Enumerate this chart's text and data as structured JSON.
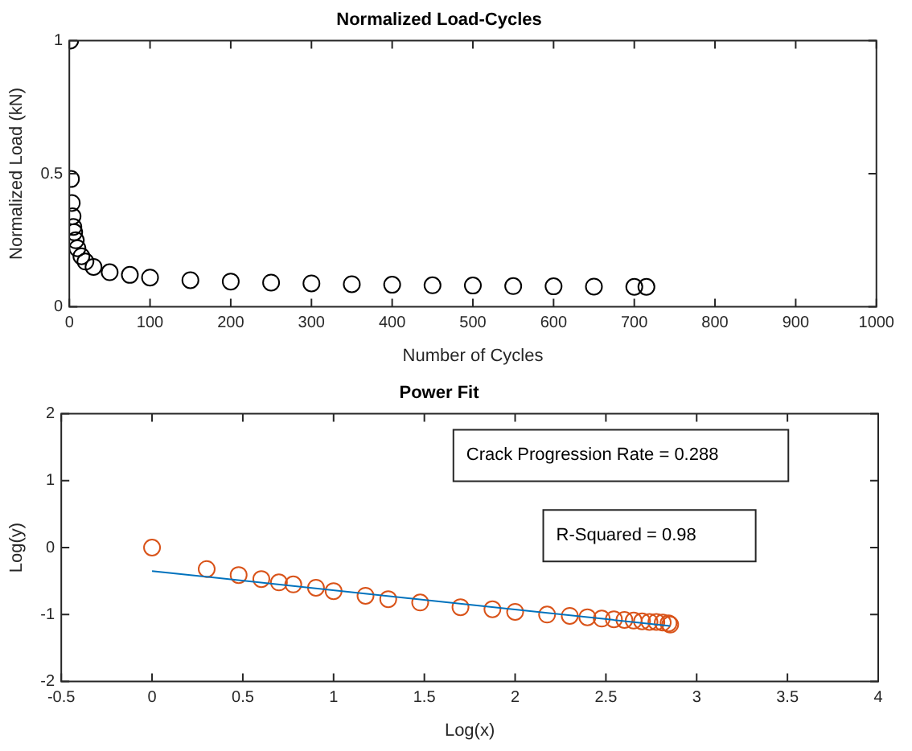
{
  "chart_data": [
    {
      "type": "scatter",
      "title": "Normalized Load-Cycles",
      "xlabel": "Number of Cycles",
      "ylabel": "Normalized Load (kN)",
      "marker": "circle",
      "grid": false,
      "legend": false,
      "xlim": [
        0,
        1000
      ],
      "xticks": [
        0,
        100,
        200,
        300,
        400,
        500,
        600,
        700,
        800,
        900,
        1000
      ],
      "ylim": [
        0,
        1
      ],
      "yticks": [
        0,
        0.5,
        1
      ],
      "series": [
        {
          "color": "#000000",
          "x": [
            1,
            2,
            3,
            4,
            5,
            6,
            8,
            10,
            15,
            20,
            30,
            50,
            75,
            100,
            150,
            200,
            250,
            300,
            350,
            400,
            450,
            500,
            550,
            600,
            650,
            700,
            715
          ],
          "values": [
            1,
            0.48,
            0.39,
            0.34,
            0.3,
            0.28,
            0.25,
            0.22,
            0.19,
            0.17,
            0.15,
            0.13,
            0.12,
            0.11,
            0.1,
            0.095,
            0.091,
            0.088,
            0.085,
            0.083,
            0.081,
            0.08,
            0.078,
            0.077,
            0.076,
            0.075,
            0.075
          ]
        }
      ]
    },
    {
      "type": "scatter",
      "title": "Power Fit",
      "xlabel": "Log(x)",
      "ylabel": "Log(y)",
      "marker": "circle",
      "grid": false,
      "legend": false,
      "xlim": [
        -0.5,
        4
      ],
      "xticks": [
        -0.5,
        0,
        0.5,
        1,
        1.5,
        2,
        2.5,
        3,
        3.5,
        4
      ],
      "ylim": [
        -2,
        2
      ],
      "yticks": [
        -2,
        -1,
        0,
        1,
        2
      ],
      "annotations": [
        "Crack Progression Rate = 0.288",
        "R-Squared = 0.98"
      ],
      "series": [
        {
          "color": "#d95319",
          "x": [
            0,
            0.301,
            0.477,
            0.602,
            0.699,
            0.778,
            0.903,
            1,
            1.176,
            1.301,
            1.477,
            1.699,
            1.875,
            2,
            2.176,
            2.301,
            2.398,
            2.477,
            2.544,
            2.602,
            2.653,
            2.699,
            2.74,
            2.778,
            2.813,
            2.845,
            2.854
          ],
          "values": [
            0,
            -0.32,
            -0.41,
            -0.47,
            -0.52,
            -0.55,
            -0.6,
            -0.65,
            -0.72,
            -0.77,
            -0.82,
            -0.89,
            -0.92,
            -0.96,
            -1,
            -1.02,
            -1.04,
            -1.06,
            -1.07,
            -1.08,
            -1.09,
            -1.1,
            -1.11,
            -1.11,
            -1.12,
            -1.13,
            -1.15
          ]
        },
        {
          "type": "line",
          "marker": "none",
          "color": "#0072bd",
          "x": [
            0,
            2.854
          ],
          "values": [
            -0.35,
            -1.17
          ]
        }
      ]
    }
  ]
}
